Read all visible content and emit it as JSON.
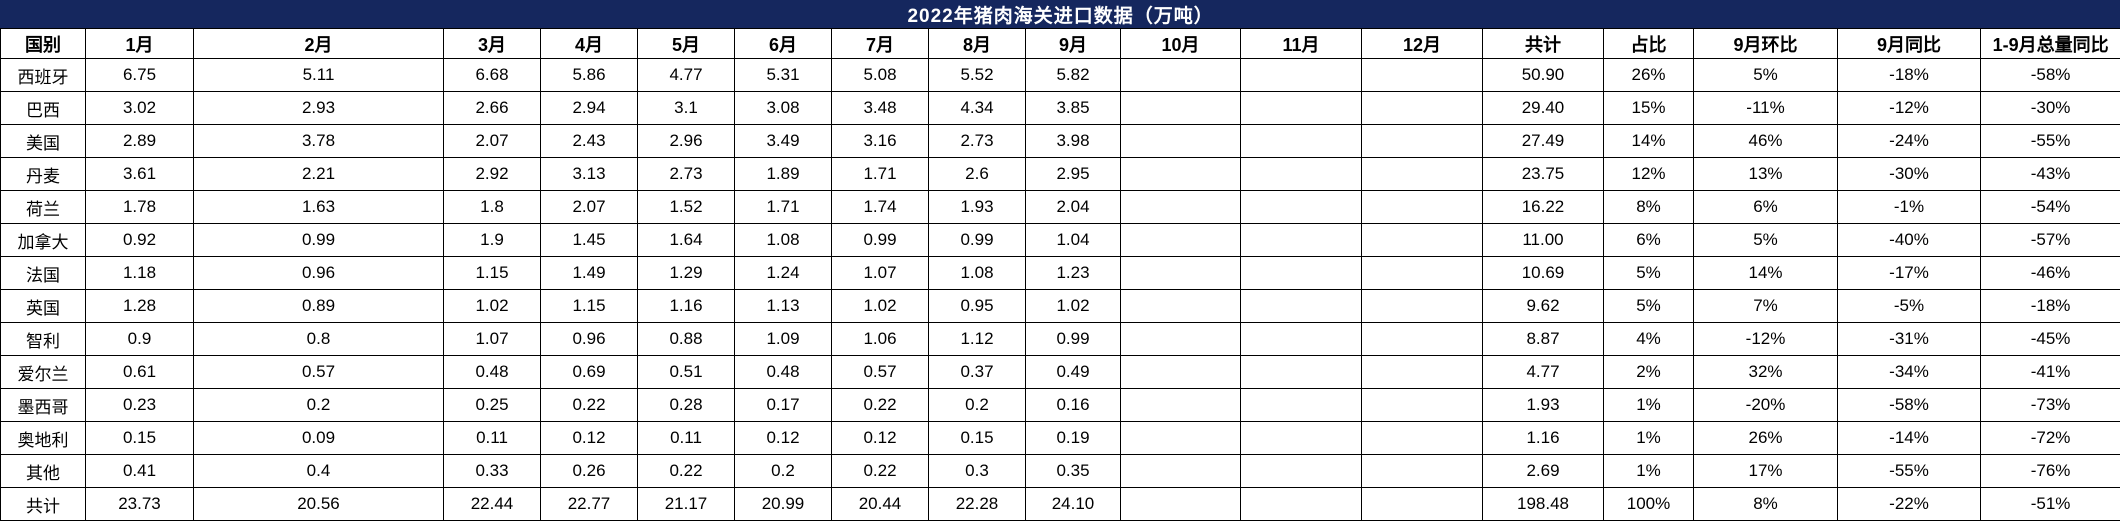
{
  "title": "2022年猪肉海关进口数据（万吨）",
  "table": {
    "columns": [
      "国别",
      "1月",
      "2月",
      "3月",
      "4月",
      "5月",
      "6月",
      "7月",
      "8月",
      "9月",
      "10月",
      "11月",
      "12月",
      "共计",
      "占比",
      "9月环比",
      "9月同比",
      "1-9月总量同比"
    ],
    "rows": [
      [
        "西班牙",
        "6.75",
        "5.11",
        "6.68",
        "5.86",
        "4.77",
        "5.31",
        "5.08",
        "5.52",
        "5.82",
        "",
        "",
        "",
        "50.90",
        "26%",
        "5%",
        "-18%",
        "-58%"
      ],
      [
        "巴西",
        "3.02",
        "2.93",
        "2.66",
        "2.94",
        "3.1",
        "3.08",
        "3.48",
        "4.34",
        "3.85",
        "",
        "",
        "",
        "29.40",
        "15%",
        "-11%",
        "-12%",
        "-30%"
      ],
      [
        "美国",
        "2.89",
        "3.78",
        "2.07",
        "2.43",
        "2.96",
        "3.49",
        "3.16",
        "2.73",
        "3.98",
        "",
        "",
        "",
        "27.49",
        "14%",
        "46%",
        "-24%",
        "-55%"
      ],
      [
        "丹麦",
        "3.61",
        "2.21",
        "2.92",
        "3.13",
        "2.73",
        "1.89",
        "1.71",
        "2.6",
        "2.95",
        "",
        "",
        "",
        "23.75",
        "12%",
        "13%",
        "-30%",
        "-43%"
      ],
      [
        "荷兰",
        "1.78",
        "1.63",
        "1.8",
        "2.07",
        "1.52",
        "1.71",
        "1.74",
        "1.93",
        "2.04",
        "",
        "",
        "",
        "16.22",
        "8%",
        "6%",
        "-1%",
        "-54%"
      ],
      [
        "加拿大",
        "0.92",
        "0.99",
        "1.9",
        "1.45",
        "1.64",
        "1.08",
        "0.99",
        "0.99",
        "1.04",
        "",
        "",
        "",
        "11.00",
        "6%",
        "5%",
        "-40%",
        "-57%"
      ],
      [
        "法国",
        "1.18",
        "0.96",
        "1.15",
        "1.49",
        "1.29",
        "1.24",
        "1.07",
        "1.08",
        "1.23",
        "",
        "",
        "",
        "10.69",
        "5%",
        "14%",
        "-17%",
        "-46%"
      ],
      [
        "英国",
        "1.28",
        "0.89",
        "1.02",
        "1.15",
        "1.16",
        "1.13",
        "1.02",
        "0.95",
        "1.02",
        "",
        "",
        "",
        "9.62",
        "5%",
        "7%",
        "-5%",
        "-18%"
      ],
      [
        "智利",
        "0.9",
        "0.8",
        "1.07",
        "0.96",
        "0.88",
        "1.09",
        "1.06",
        "1.12",
        "0.99",
        "",
        "",
        "",
        "8.87",
        "4%",
        "-12%",
        "-31%",
        "-45%"
      ],
      [
        "爱尔兰",
        "0.61",
        "0.57",
        "0.48",
        "0.69",
        "0.51",
        "0.48",
        "0.57",
        "0.37",
        "0.49",
        "",
        "",
        "",
        "4.77",
        "2%",
        "32%",
        "-34%",
        "-41%"
      ],
      [
        "墨西哥",
        "0.23",
        "0.2",
        "0.25",
        "0.22",
        "0.28",
        "0.17",
        "0.22",
        "0.2",
        "0.16",
        "",
        "",
        "",
        "1.93",
        "1%",
        "-20%",
        "-58%",
        "-73%"
      ],
      [
        "奥地利",
        "0.15",
        "0.09",
        "0.11",
        "0.12",
        "0.11",
        "0.12",
        "0.12",
        "0.15",
        "0.19",
        "",
        "",
        "",
        "1.16",
        "1%",
        "26%",
        "-14%",
        "-72%"
      ],
      [
        "其他",
        "0.41",
        "0.4",
        "0.33",
        "0.26",
        "0.22",
        "0.2",
        "0.22",
        "0.3",
        "0.35",
        "",
        "",
        "",
        "2.69",
        "1%",
        "17%",
        "-55%",
        "-76%"
      ],
      [
        "共计",
        "23.73",
        "20.56",
        "22.44",
        "22.77",
        "21.17",
        "20.99",
        "20.44",
        "22.28",
        "24.10",
        "",
        "",
        "",
        "198.48",
        "100%",
        "8%",
        "-22%",
        "-51%"
      ]
    ]
  },
  "colors": {
    "title_bar_bg": "#15275e",
    "title_text": "#ffffff",
    "grid_border": "#000000",
    "cell_bg": "#ffffff",
    "cell_text": "#000000"
  }
}
